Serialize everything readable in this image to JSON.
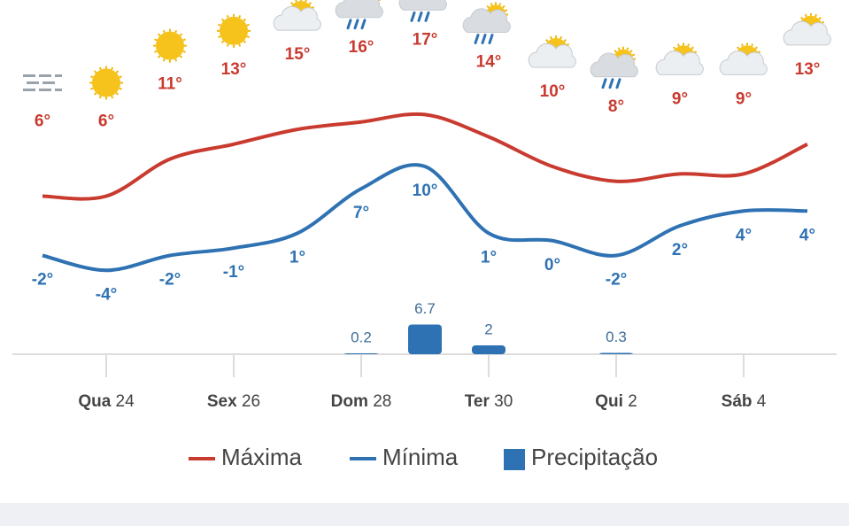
{
  "chart_data": {
    "type": "line",
    "weekdays": [
      null,
      "Qua",
      null,
      "Sex",
      null,
      "Dom",
      null,
      "Ter",
      null,
      "Qui",
      null,
      "Sáb",
      null
    ],
    "days": [
      null,
      "24",
      null,
      "26",
      null,
      "28",
      null,
      "30",
      null,
      "2",
      null,
      "4",
      null
    ],
    "icons": [
      "fog",
      "sun",
      "sun",
      "sun",
      "partly-cloudy",
      "rain",
      "rain",
      "rain",
      "partly-cloudy",
      "rain",
      "partly-cloudy",
      "partly-cloudy",
      "partly-cloudy"
    ],
    "series": [
      {
        "name": "Máxima",
        "color": "#c93a2f",
        "values": [
          6,
          6,
          11,
          13,
          15,
          16,
          17,
          14,
          10,
          8,
          9,
          9,
          13
        ],
        "value_labels": [
          "6°",
          "6°",
          "11°",
          "13°",
          "15°",
          "16°",
          "17°",
          "14°",
          "10°",
          "8°",
          "9°",
          "9°",
          "13°"
        ]
      },
      {
        "name": "Mínima",
        "color": "#2f72b3",
        "values": [
          -2,
          -4,
          -2,
          -1,
          1,
          7,
          10,
          1,
          0,
          -2,
          2,
          4,
          4
        ],
        "value_labels": [
          "-2°",
          "-4°",
          "-2°",
          "-1°",
          "1°",
          "7°",
          "10°",
          "1°",
          "0°",
          "-2°",
          "2°",
          "4°",
          "4°"
        ]
      },
      {
        "name": "Precipitação",
        "type": "bar",
        "axis": "y2",
        "color": "#2f72b3",
        "values": [
          null,
          null,
          null,
          null,
          null,
          0.2,
          6.7,
          2,
          null,
          0.3,
          null,
          null,
          null
        ]
      }
    ],
    "ylim": [
      -6,
      18
    ],
    "y2lim": [
      0,
      20
    ]
  }
}
